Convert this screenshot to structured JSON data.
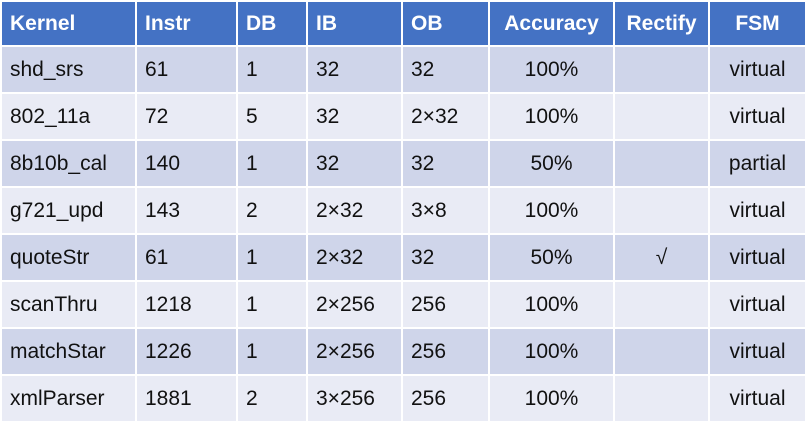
{
  "table": {
    "headers": [
      "Kernel",
      "Instr",
      "DB",
      "IB",
      "OB",
      "Accuracy",
      "Rectify",
      "FSM"
    ],
    "rows": [
      {
        "kernel": "shd_srs",
        "instr": "61",
        "db": "1",
        "ib": "32",
        "ob": "32",
        "accuracy": "100%",
        "rectify": "",
        "fsm": "virtual"
      },
      {
        "kernel": "802_11a",
        "instr": "72",
        "db": "5",
        "ib": "32",
        "ob": "2×32",
        "accuracy": "100%",
        "rectify": "",
        "fsm": "virtual"
      },
      {
        "kernel": "8b10b_cal",
        "instr": "140",
        "db": "1",
        "ib": "32",
        "ob": "32",
        "accuracy": "50%",
        "rectify": "",
        "fsm": "partial"
      },
      {
        "kernel": "g721_upd",
        "instr": "143",
        "db": "2",
        "ib": "2×32",
        "ob": "3×8",
        "accuracy": "100%",
        "rectify": "",
        "fsm": "virtual"
      },
      {
        "kernel": "quoteStr",
        "instr": "61",
        "db": "1",
        "ib": "2×32",
        "ob": "32",
        "accuracy": "50%",
        "rectify": "√",
        "fsm": "virtual"
      },
      {
        "kernel": "scanThru",
        "instr": "1218",
        "db": "1",
        "ib": "2×256",
        "ob": "256",
        "accuracy": "100%",
        "rectify": "",
        "fsm": "virtual"
      },
      {
        "kernel": "matchStar",
        "instr": "1226",
        "db": "1",
        "ib": "2×256",
        "ob": "256",
        "accuracy": "100%",
        "rectify": "",
        "fsm": "virtual"
      },
      {
        "kernel": "xmlParser",
        "instr": "1881",
        "db": "2",
        "ib": "3×256",
        "ob": "256",
        "accuracy": "100%",
        "rectify": "",
        "fsm": "virtual"
      }
    ]
  },
  "colors": {
    "header_bg": "#4472c4",
    "row_dark": "#cfd5ea",
    "row_light": "#e9ebf5"
  }
}
